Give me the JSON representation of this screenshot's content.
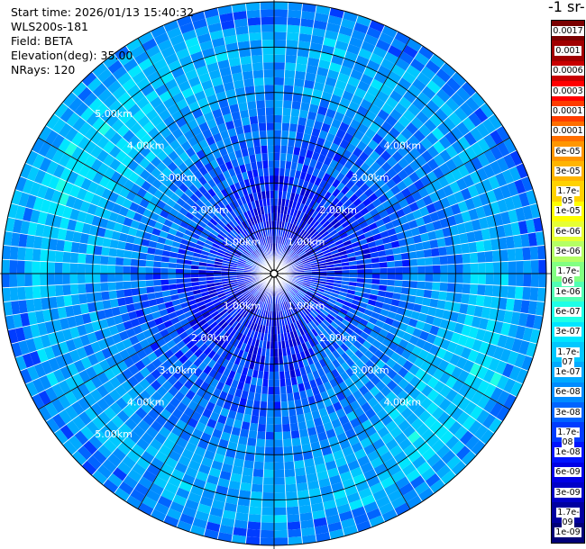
{
  "header": {
    "start_time": "Start time: 2026/01/13 15:40:32",
    "device": "WLS200s-181",
    "field": "Field: BETA",
    "elevation": "Elevation(deg): 35.00",
    "nrays": "NRays: 120"
  },
  "colorbar": {
    "unit_label": "-1 sr-",
    "ticks": [
      "0.0017",
      "0.001",
      "0.0006",
      "0.0003",
      "0.00017",
      "0.0001",
      "6e-05",
      "3e-05",
      "1.7e-05",
      "1e-05",
      "6e-06",
      "3e-06",
      "1.7e-06",
      "1e-06",
      "6e-07",
      "3e-07",
      "1.7e-07",
      "1e-07",
      "6e-08",
      "3e-08",
      "1.7e-08",
      "1e-08",
      "6e-09",
      "3e-09",
      "1.7e-09",
      "1e-09"
    ],
    "colors": [
      "#7a0000",
      "#a00000",
      "#c80000",
      "#ff0000",
      "#ff3c00",
      "#ff6e00",
      "#ff9600",
      "#ffb400",
      "#ffd200",
      "#ffff00",
      "#e6ff33",
      "#b4ff64",
      "#82ff82",
      "#50ffb4",
      "#1effe6",
      "#00e6ff",
      "#00c8ff",
      "#00aaff",
      "#008cff",
      "#0064ff",
      "#003cff",
      "#0014ff",
      "#0000e6",
      "#0000c8",
      "#0000a0",
      "#000078"
    ]
  },
  "chart_data": {
    "type": "heatmap",
    "projection": "polar PPI",
    "field": "BETA",
    "nrays": 120,
    "range_rings_km": [
      1,
      2,
      3,
      4,
      5
    ],
    "ring_labels": [
      "1.00km",
      "2.00km",
      "3.00km",
      "4.00km",
      "5.00km"
    ],
    "max_range_km": 6.0,
    "color_scale": "log",
    "vmin": 1e-09,
    "vmax": 0.0017
  }
}
